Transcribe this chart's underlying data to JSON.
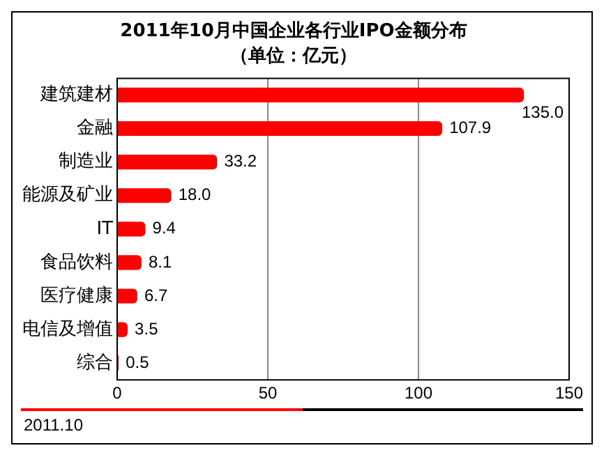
{
  "chart_data": {
    "type": "bar",
    "orientation": "horizontal",
    "title": "2011年10月中国企业各行业IPO金额分布",
    "subtitle": "（单位：亿元）",
    "categories": [
      "建筑建材",
      "金融",
      "制造业",
      "能源及矿业",
      "IT",
      "食品饮料",
      "医疗健康",
      "电信及增值",
      "综合"
    ],
    "values": [
      135.0,
      107.9,
      33.2,
      18.0,
      9.4,
      8.1,
      6.7,
      3.5,
      0.5
    ],
    "value_labels": [
      "135.0",
      "107.9",
      "33.2",
      "18.0",
      "9.4",
      "8.1",
      "6.7",
      "3.5",
      "0.5"
    ],
    "color": "#ff0000",
    "xlim": [
      0,
      150
    ],
    "xticks": [
      0,
      50,
      100,
      150
    ],
    "grid": "x",
    "legend": false,
    "annotations": [
      "2011.10"
    ]
  }
}
